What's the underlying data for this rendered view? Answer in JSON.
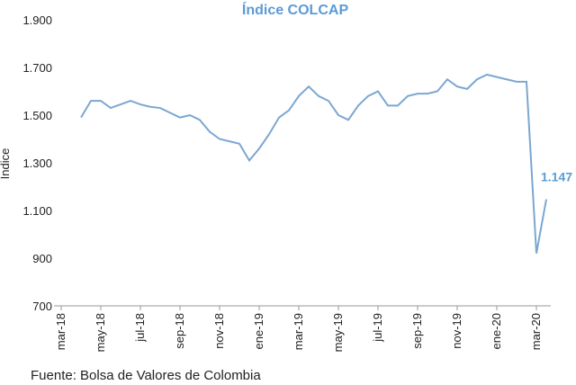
{
  "chart_data": {
    "type": "line",
    "title": "Índice COLCAP",
    "y_label": "Índice",
    "source": "Fuente: Bolsa de Valores de Colombia",
    "categories": [
      "mar-18",
      null,
      null,
      null,
      "may-18",
      null,
      null,
      null,
      "jul-18",
      null,
      null,
      null,
      "sep-18",
      null,
      null,
      null,
      "nov-18",
      null,
      null,
      null,
      "ene-19",
      null,
      null,
      null,
      "mar-19",
      null,
      null,
      null,
      "may-19",
      null,
      null,
      null,
      "jul-19",
      null,
      null,
      null,
      "sep-19",
      null,
      null,
      null,
      "nov-19",
      null,
      null,
      null,
      "ene-20",
      null,
      null,
      null,
      "mar-20",
      null
    ],
    "series": [
      {
        "name": "COLCAP",
        "color": "#7ba7d1",
        "values": [
          null,
          null,
          1490,
          1560,
          1560,
          1530,
          1545,
          1560,
          1545,
          1535,
          1530,
          1510,
          1490,
          1500,
          1480,
          1430,
          1400,
          1390,
          1380,
          1310,
          1360,
          1420,
          1490,
          1520,
          1580,
          1620,
          1580,
          1560,
          1500,
          1480,
          1540,
          1580,
          1600,
          1540,
          1540,
          1580,
          1590,
          1590,
          1600,
          1650,
          1620,
          1610,
          1650,
          1670,
          1660,
          1650,
          1640,
          1640,
          920,
          1147
        ],
        "value_labels": [
          null,
          null,
          null,
          null,
          null,
          null,
          null,
          null,
          null,
          null,
          null,
          null,
          null,
          null,
          null,
          null,
          null,
          null,
          null,
          null,
          null,
          null,
          null,
          null,
          null,
          null,
          null,
          null,
          null,
          null,
          null,
          null,
          null,
          null,
          null,
          null,
          null,
          null,
          null,
          null,
          null,
          null,
          null,
          null,
          null,
          null,
          null,
          null,
          null,
          "1.147"
        ]
      }
    ],
    "ylim": [
      700,
      1900
    ],
    "yticks": [
      {
        "value": 700,
        "label": "700"
      },
      {
        "value": 900,
        "label": "900"
      },
      {
        "value": 1100,
        "label": "1.100"
      },
      {
        "value": 1300,
        "label": "1.300"
      },
      {
        "value": 1500,
        "label": "1.500"
      },
      {
        "value": 1700,
        "label": "1.700"
      },
      {
        "value": 1900,
        "label": "1.900"
      }
    ],
    "grid": false
  }
}
